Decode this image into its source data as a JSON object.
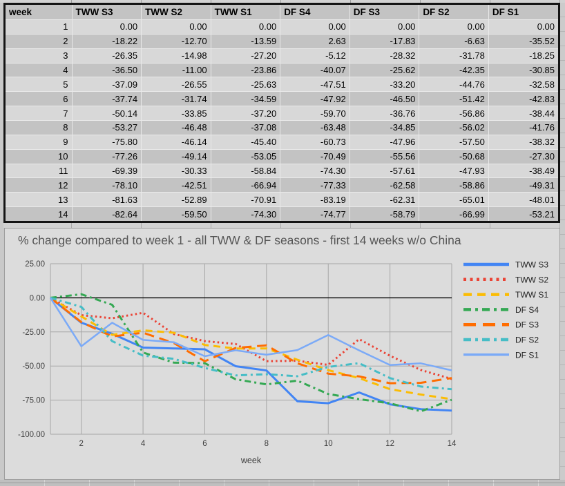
{
  "sheet": {
    "table": {
      "header": [
        "week",
        "TWW S3",
        "TWW S2",
        "TWW S1",
        "DF S4",
        "DF S3",
        "DF S2",
        "DF S1"
      ],
      "weeks": [
        1,
        2,
        3,
        4,
        5,
        6,
        7,
        8,
        9,
        10,
        11,
        12,
        13,
        14
      ],
      "value_format": "2dp"
    }
  },
  "chart_data": {
    "type": "line",
    "title": "% change compared to week 1 - all TWW & DF seasons - first 14 weeks w/o China",
    "xlabel": "week",
    "ylabel": "",
    "x": [
      1,
      2,
      3,
      4,
      5,
      6,
      7,
      8,
      9,
      10,
      11,
      12,
      13,
      14
    ],
    "xticks": [
      2,
      4,
      6,
      8,
      10,
      12,
      14
    ],
    "yticks": [
      25,
      0,
      -25,
      -50,
      -75,
      -100
    ],
    "ytick_labels": [
      "25.00",
      "0.00",
      "-25.00",
      "-50.00",
      "-75.00",
      "-100.00"
    ],
    "ylim": [
      -100,
      25
    ],
    "grid": true,
    "legend_position": "right",
    "zero_line_color": "#000000",
    "gridline_color": "#a6a6a6",
    "plot_background": "#dcdcdc",
    "series": [
      {
        "name": "TWW S3",
        "color": "#4285F4",
        "style": "solid",
        "values": [
          0,
          -18.22,
          -26.35,
          -36.5,
          -37.09,
          -37.74,
          -50.14,
          -53.27,
          -75.8,
          -77.26,
          -69.39,
          -78.1,
          -81.63,
          -82.64
        ]
      },
      {
        "name": "TWW S2",
        "color": "#EA4335",
        "style": "dotted",
        "values": [
          0,
          -12.7,
          -14.98,
          -11.0,
          -26.55,
          -31.74,
          -33.85,
          -46.48,
          -46.14,
          -49.14,
          -30.33,
          -42.51,
          -52.89,
          -59.5
        ]
      },
      {
        "name": "TWW S1",
        "color": "#FBBC04",
        "style": "dashed",
        "values": [
          0,
          -13.59,
          -27.2,
          -23.86,
          -25.63,
          -34.59,
          -37.2,
          -37.08,
          -45.4,
          -53.05,
          -58.84,
          -66.94,
          -70.91,
          -74.3
        ]
      },
      {
        "name": "DF S4",
        "color": "#34A853",
        "style": "dash-dot",
        "values": [
          0,
          2.63,
          -5.12,
          -40.07,
          -47.51,
          -47.92,
          -59.7,
          -63.48,
          -60.73,
          -70.49,
          -74.3,
          -77.33,
          -83.19,
          -74.77
        ]
      },
      {
        "name": "DF S3",
        "color": "#FF6D01",
        "style": "long-dash",
        "values": [
          0,
          -17.83,
          -28.32,
          -25.62,
          -33.2,
          -46.5,
          -36.76,
          -34.85,
          -47.96,
          -55.56,
          -57.61,
          -62.58,
          -62.31,
          -58.79
        ]
      },
      {
        "name": "DF S2",
        "color": "#46BDC6",
        "style": "dash-dot",
        "values": [
          0,
          -6.63,
          -31.78,
          -42.35,
          -44.76,
          -51.42,
          -56.86,
          -56.02,
          -57.5,
          -50.68,
          -47.93,
          -58.86,
          -65.01,
          -66.99
        ]
      },
      {
        "name": "DF S1",
        "color": "#7BAAF7",
        "style": "solid",
        "values": [
          0,
          -35.52,
          -18.25,
          -30.85,
          -32.58,
          -42.83,
          -38.44,
          -41.76,
          -38.32,
          -27.3,
          -38.49,
          -49.31,
          -48.01,
          -53.21
        ]
      }
    ]
  }
}
